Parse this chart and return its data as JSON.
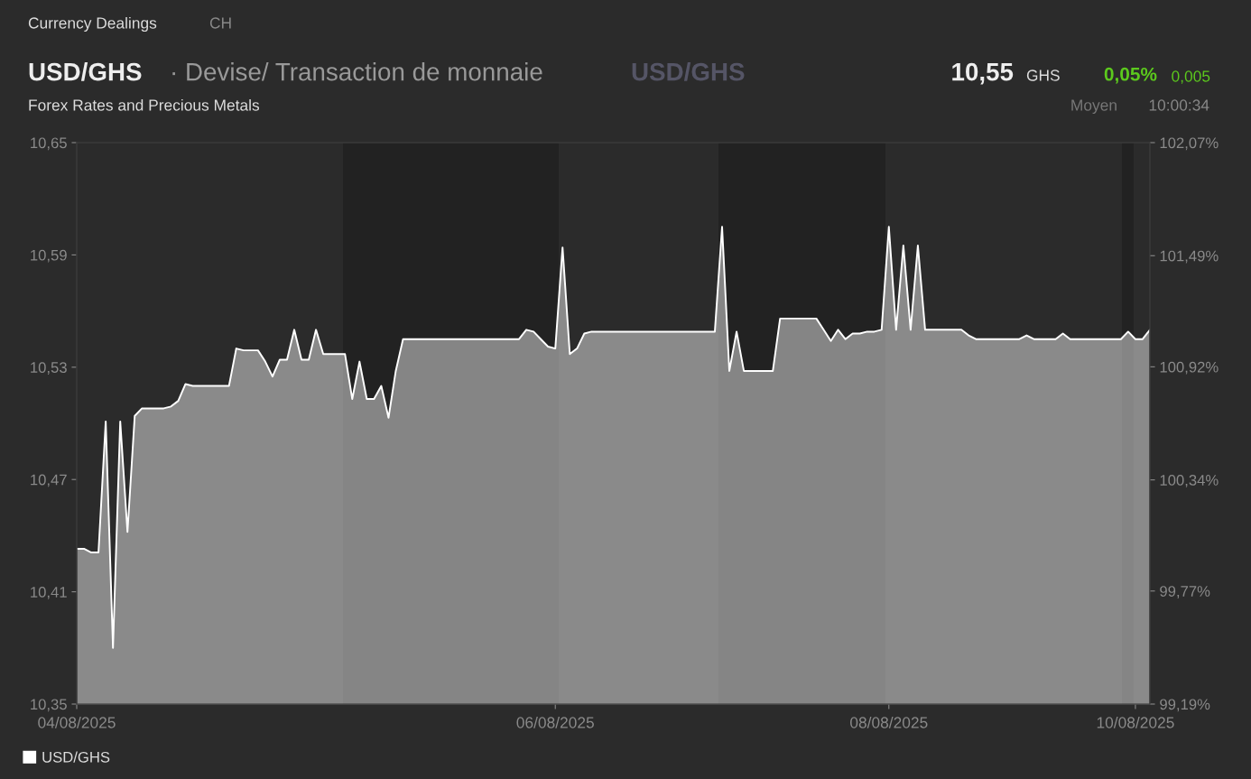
{
  "chart_data": {
    "type": "area",
    "title": "USD/GHS",
    "subtitle": "Forex Rates and Precious Metals",
    "annotations": [
      "Currency Dealings",
      "CH",
      "· Devise/ Transaction de monnaie",
      "USD/GHS",
      "10,55",
      "GHS",
      "0,05%",
      "0,005",
      "Moyen",
      "10:00:34"
    ],
    "categories": [
      "04/08/2025",
      null,
      null,
      null,
      null,
      null,
      null,
      null,
      null,
      null,
      null,
      null,
      null,
      null,
      null,
      null,
      null,
      null,
      null,
      null,
      null,
      null,
      null,
      null,
      null,
      null,
      null,
      null,
      null,
      null,
      null,
      null,
      null,
      null,
      null,
      null,
      null,
      null,
      null,
      null,
      null,
      null,
      null,
      null,
      null,
      null,
      null,
      null,
      null,
      null,
      null,
      null,
      null,
      null,
      null,
      null,
      null,
      null,
      null,
      null,
      null,
      null,
      null,
      null,
      null,
      null,
      "06/08/2025",
      null,
      null,
      null,
      null,
      null,
      null,
      null,
      null,
      null,
      null,
      null,
      null,
      null,
      null,
      null,
      null,
      null,
      null,
      null,
      null,
      null,
      null,
      null,
      null,
      null,
      null,
      null,
      null,
      null,
      null,
      null,
      null,
      null,
      null,
      null,
      null,
      null,
      null,
      null,
      null,
      null,
      null,
      null,
      null,
      null,
      "08/08/2025",
      null,
      null,
      null,
      null,
      null,
      null,
      null,
      null,
      null,
      null,
      null,
      null,
      null,
      null,
      null,
      null,
      null,
      null,
      null,
      null,
      null,
      null,
      null,
      null,
      null,
      null,
      null,
      null,
      null,
      null,
      null,
      null,
      null,
      "10/08/2025",
      null,
      null
    ],
    "series": [
      {
        "name": "USD/GHS",
        "color": "#ffffff",
        "values": [
          10.433,
          10.433,
          10.431,
          10.431,
          10.501,
          10.38,
          10.501,
          10.442,
          10.504,
          10.508,
          10.508,
          10.508,
          10.508,
          10.509,
          10.512,
          10.521,
          10.52,
          10.52,
          10.52,
          10.52,
          10.52,
          10.52,
          10.54,
          10.539,
          10.539,
          10.539,
          10.533,
          10.525,
          10.534,
          10.534,
          10.55,
          10.534,
          10.534,
          10.55,
          10.537,
          10.537,
          10.537,
          10.537,
          10.513,
          10.533,
          10.513,
          10.513,
          10.52,
          10.503,
          10.528,
          10.545,
          10.545,
          10.545,
          10.545,
          10.545,
          10.545,
          10.545,
          10.545,
          10.545,
          10.545,
          10.545,
          10.545,
          10.545,
          10.545,
          10.545,
          10.545,
          10.545,
          10.55,
          10.549,
          10.545,
          10.541,
          10.54,
          10.594,
          10.537,
          10.54,
          10.548,
          10.549,
          10.549,
          10.549,
          10.549,
          10.549,
          10.549,
          10.549,
          10.549,
          10.549,
          10.549,
          10.549,
          10.549,
          10.549,
          10.549,
          10.549,
          10.549,
          10.549,
          10.549,
          10.605,
          10.528,
          10.549,
          10.528,
          10.528,
          10.528,
          10.528,
          10.528,
          10.556,
          10.556,
          10.556,
          10.556,
          10.556,
          10.556,
          10.55,
          10.544,
          10.55,
          10.545,
          10.548,
          10.548,
          10.549,
          10.549,
          10.55,
          10.605,
          10.55,
          10.595,
          10.55,
          10.595,
          10.55,
          10.55,
          10.55,
          10.55,
          10.55,
          10.55,
          10.547,
          10.545,
          10.545,
          10.545,
          10.545,
          10.545,
          10.545,
          10.545,
          10.547,
          10.545,
          10.545,
          10.545,
          10.545,
          10.548,
          10.545,
          10.545,
          10.545,
          10.545,
          10.545,
          10.545,
          10.545,
          10.545,
          10.549,
          10.545,
          10.545,
          10.55
        ]
      }
    ],
    "ylim": [
      10.35,
      10.65
    ],
    "yticks": [
      {
        "value": 10.35,
        "label": "10,35"
      },
      {
        "value": 10.41,
        "label": "10,41"
      },
      {
        "value": 10.47,
        "label": "10,47"
      },
      {
        "value": 10.53,
        "label": "10,53"
      },
      {
        "value": 10.59,
        "label": "10,59"
      },
      {
        "value": 10.65,
        "label": "10,65"
      }
    ],
    "y2lim": [
      99.19,
      102.07
    ],
    "y2ticks": [
      {
        "value": 99.19,
        "label": "99,19%"
      },
      {
        "value": 99.77,
        "label": "99,77%"
      },
      {
        "value": 100.34,
        "label": "100,34%"
      },
      {
        "value": 100.92,
        "label": "100,92%"
      },
      {
        "value": 101.49,
        "label": "101,49%"
      },
      {
        "value": 102.07,
        "label": "102,07%"
      }
    ],
    "grid": false,
    "legend": "bottom left"
  }
}
